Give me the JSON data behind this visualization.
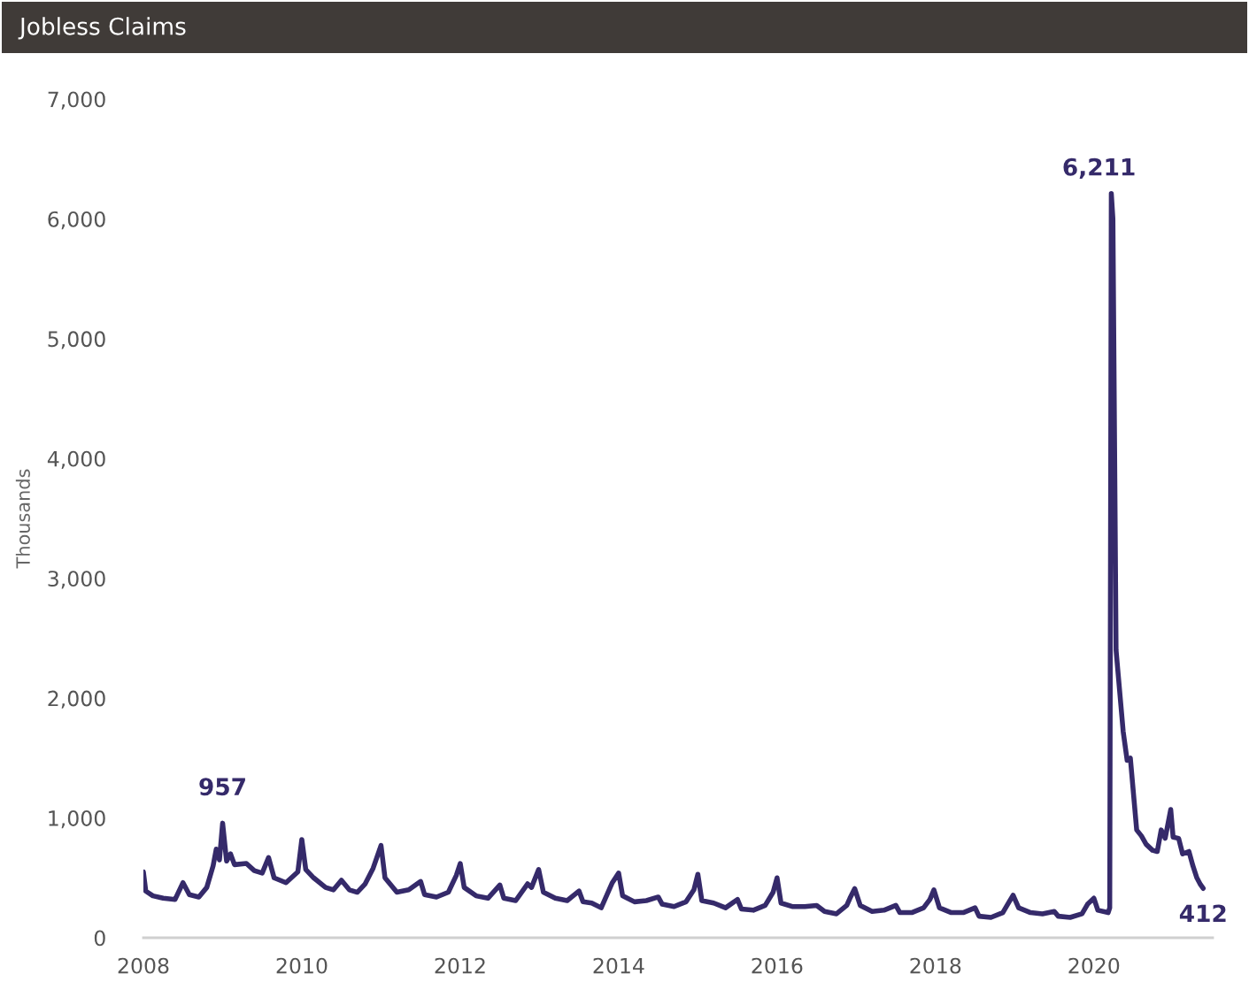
{
  "chart_data": {
    "type": "line",
    "title": "Jobless Claims",
    "ylabel": "Thousands",
    "xlim": [
      2008,
      2021.5
    ],
    "xticks": [
      2008,
      2010,
      2012,
      2014,
      2016,
      2018,
      2020
    ],
    "ylim": [
      0,
      7000
    ],
    "yticks": [
      {
        "value": 0,
        "label": "0"
      },
      {
        "value": 1000,
        "label": "1,000"
      },
      {
        "value": 2000,
        "label": "2,000"
      },
      {
        "value": 3000,
        "label": "3,000"
      },
      {
        "value": 4000,
        "label": "4,000"
      },
      {
        "value": 5000,
        "label": "5,000"
      },
      {
        "value": 6000,
        "label": "6,000"
      },
      {
        "value": 7000,
        "label": "7,000"
      }
    ],
    "grid": false,
    "annotations": [
      {
        "text": "957",
        "x": 2009.0,
        "y": 957
      },
      {
        "text": "6,211",
        "x": 2020.22,
        "y": 6211
      },
      {
        "text": "412",
        "x": 2021.38,
        "y": 412
      }
    ],
    "series": [
      {
        "color": "#352a6a",
        "x": [
          2008.0,
          2008.03,
          2008.12,
          2008.25,
          2008.4,
          2008.5,
          2008.58,
          2008.7,
          2008.8,
          2008.88,
          2008.92,
          2008.96,
          2009.0,
          2009.05,
          2009.1,
          2009.15,
          2009.3,
          2009.4,
          2009.5,
          2009.58,
          2009.65,
          2009.8,
          2009.95,
          2010.0,
          2010.05,
          2010.15,
          2010.3,
          2010.4,
          2010.5,
          2010.6,
          2010.7,
          2010.8,
          2010.9,
          2011.0,
          2011.05,
          2011.2,
          2011.35,
          2011.5,
          2011.55,
          2011.7,
          2011.85,
          2011.95,
          2012.0,
          2012.05,
          2012.2,
          2012.35,
          2012.5,
          2012.55,
          2012.7,
          2012.85,
          2012.9,
          2012.99,
          2013.05,
          2013.2,
          2013.35,
          2013.5,
          2013.55,
          2013.66,
          2013.78,
          2013.92,
          2014.0,
          2014.05,
          2014.2,
          2014.35,
          2014.5,
          2014.55,
          2014.7,
          2014.85,
          2014.95,
          2015.0,
          2015.05,
          2015.2,
          2015.35,
          2015.5,
          2015.55,
          2015.7,
          2015.85,
          2015.95,
          2016.0,
          2016.05,
          2016.2,
          2016.35,
          2016.5,
          2016.6,
          2016.75,
          2016.88,
          2016.92,
          2016.98,
          2017.05,
          2017.2,
          2017.35,
          2017.5,
          2017.55,
          2017.7,
          2017.85,
          2017.93,
          2017.98,
          2018.05,
          2018.2,
          2018.35,
          2018.5,
          2018.55,
          2018.7,
          2018.85,
          2018.93,
          2018.98,
          2019.05,
          2019.2,
          2019.35,
          2019.5,
          2019.55,
          2019.7,
          2019.85,
          2019.92,
          2020.0,
          2020.05,
          2020.18,
          2020.2,
          2020.22,
          2020.24,
          2020.28,
          2020.37,
          2020.42,
          2020.46,
          2020.54,
          2020.6,
          2020.66,
          2020.74,
          2020.8,
          2020.85,
          2020.9,
          2020.97,
          2021.0,
          2021.07,
          2021.12,
          2021.2,
          2021.25,
          2021.3,
          2021.34,
          2021.38
        ],
        "values": [
          550,
          390,
          350,
          330,
          320,
          460,
          360,
          340,
          420,
          600,
          740,
          650,
          957,
          640,
          700,
          610,
          620,
          560,
          540,
          670,
          500,
          460,
          550,
          820,
          570,
          500,
          420,
          400,
          480,
          400,
          380,
          450,
          580,
          770,
          500,
          380,
          400,
          470,
          360,
          340,
          380,
          520,
          620,
          420,
          350,
          330,
          440,
          330,
          310,
          450,
          420,
          570,
          380,
          330,
          310,
          390,
          300,
          290,
          250,
          460,
          540,
          350,
          300,
          310,
          340,
          280,
          260,
          300,
          400,
          530,
          310,
          290,
          250,
          320,
          240,
          230,
          270,
          380,
          500,
          290,
          260,
          260,
          270,
          220,
          200,
          270,
          330,
          410,
          270,
          220,
          230,
          270,
          210,
          210,
          250,
          320,
          400,
          250,
          210,
          210,
          250,
          180,
          170,
          210,
          300,
          355,
          250,
          210,
          200,
          220,
          180,
          170,
          200,
          280,
          330,
          230,
          210,
          250,
          6211,
          6000,
          2400,
          1720,
          1480,
          1500,
          900,
          850,
          780,
          730,
          720,
          900,
          830,
          1070,
          840,
          830,
          700,
          720,
          600,
          500,
          450,
          412
        ]
      }
    ]
  }
}
